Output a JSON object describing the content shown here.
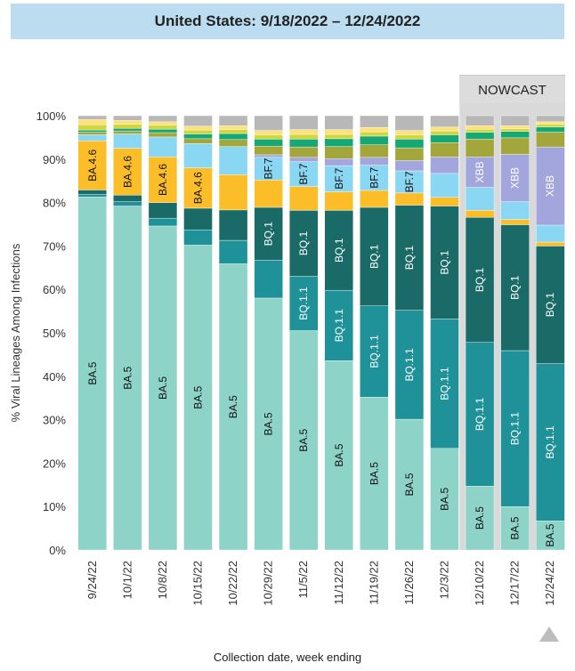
{
  "title": "United States: 9/18/2022 – 12/24/2022",
  "nowcast_label": "NOWCAST",
  "xlabel": "Collection date, week ending",
  "chart_data": {
    "type": "bar",
    "stacked": true,
    "title": "United States: 9/18/2022 – 12/24/2022",
    "xlabel": "Collection date, week ending",
    "ylabel": "% Viral Lineages Among Infections",
    "ylim": [
      0,
      100
    ],
    "yticks": [
      "0%",
      "10%",
      "20%",
      "30%",
      "40%",
      "50%",
      "60%",
      "70%",
      "80%",
      "90%",
      "100%"
    ],
    "grid": false,
    "categories": [
      "9/24/22",
      "10/1/22",
      "10/8/22",
      "10/15/22",
      "10/22/22",
      "10/29/22",
      "11/5/22",
      "11/12/22",
      "11/19/22",
      "11/26/22",
      "12/3/22",
      "12/10/22",
      "12/17/22",
      "12/24/22"
    ],
    "nowcast_categories": [
      "12/10/22",
      "12/17/22",
      "12/24/22"
    ],
    "series": [
      {
        "name": "BA.5",
        "color": "#8dd3c7",
        "values": [
          81.3,
          79.2,
          74.6,
          70.2,
          65.9,
          58.0,
          50.5,
          43.6,
          35.2,
          30.1,
          23.4,
          14.7,
          10.0,
          6.7
        ]
      },
      {
        "name": "BQ.1.1",
        "color": "#1e9199",
        "values": [
          0.6,
          1.0,
          1.8,
          3.5,
          5.4,
          8.7,
          12.5,
          16.2,
          21.0,
          25.1,
          29.8,
          33.1,
          35.9,
          36.2
        ]
      },
      {
        "name": "BQ.1",
        "color": "#1a6b68",
        "values": [
          1.0,
          1.5,
          3.6,
          5.0,
          7.0,
          12.2,
          15.2,
          18.4,
          22.7,
          24.2,
          26.0,
          28.8,
          29.0,
          27.1
        ]
      },
      {
        "name": "",
        "color": "#fbbe28",
        "values": [
          11.3,
          10.8,
          10.5,
          9.3,
          8.1,
          6.3,
          5.5,
          4.3,
          3.9,
          2.8,
          2.0,
          1.6,
          1.2,
          0.9
        ]
      },
      {
        "name": "",
        "color": "#8ad7f4",
        "values": [
          1.4,
          3.3,
          4.6,
          5.6,
          6.5,
          5.2,
          5.7,
          6.0,
          5.8,
          5.1,
          5.5,
          5.3,
          4.1,
          3.9
        ]
      },
      {
        "name": "",
        "color": "#a2a6dc",
        "values": [
          0.0,
          0.0,
          0.0,
          0.0,
          0.0,
          0.6,
          1.0,
          1.6,
          1.8,
          2.4,
          3.8,
          7.0,
          10.9,
          18.0
        ]
      },
      {
        "name": "",
        "color": "#a3a63a",
        "values": [
          0.6,
          0.7,
          1.0,
          1.1,
          1.6,
          2.0,
          2.4,
          2.8,
          2.9,
          2.9,
          3.3,
          4.1,
          3.8,
          3.4
        ]
      },
      {
        "name": "",
        "color": "#16a874",
        "values": [
          0.5,
          0.6,
          0.8,
          1.1,
          1.4,
          1.6,
          1.8,
          1.8,
          2.0,
          2.0,
          1.8,
          1.6,
          1.5,
          1.2
        ]
      },
      {
        "name": "",
        "color": "#d2d63e",
        "values": [
          1.2,
          0.9,
          0.9,
          0.9,
          0.9,
          1.0,
          1.1,
          1.0,
          1.0,
          1.0,
          0.9,
          0.7,
          0.6,
          0.6
        ]
      },
      {
        "name": "",
        "color": "#fde27a",
        "values": [
          1.2,
          0.9,
          0.8,
          0.9,
          0.9,
          1.0,
          1.1,
          1.1,
          1.0,
          1.0,
          0.9,
          0.8,
          0.7,
          0.6
        ]
      },
      {
        "name": "",
        "color": "#b8b8b8",
        "values": [
          0.9,
          1.1,
          1.4,
          2.4,
          2.3,
          3.4,
          3.2,
          3.2,
          2.7,
          3.4,
          2.6,
          2.3,
          2.3,
          1.4
        ]
      }
    ],
    "bar_labels": [
      {
        "series": "BA.5",
        "categories": "all",
        "text": "BA.5"
      },
      {
        "series": "BQ.1.1",
        "categories": [
          "11/5/22",
          "11/12/22",
          "11/19/22",
          "11/26/22",
          "12/3/22",
          "12/10/22",
          "12/17/22",
          "12/24/22"
        ],
        "text": "BQ.1.1"
      },
      {
        "series": "BQ.1",
        "categories": [
          "10/29/22",
          "11/5/22",
          "11/12/22",
          "11/19/22",
          "11/26/22",
          "12/3/22",
          "12/10/22",
          "12/17/22",
          "12/24/22"
        ],
        "text": "BQ.1"
      },
      {
        "series": 3,
        "categories": [
          "9/24/22",
          "10/1/22",
          "10/8/22",
          "10/15/22"
        ],
        "text": "BA.4.6"
      },
      {
        "series": 4,
        "categories": [
          "10/29/22",
          "11/5/22",
          "11/12/22",
          "11/19/22",
          "11/26/22"
        ],
        "text": "BF.7"
      },
      {
        "series": 5,
        "categories": [
          "12/10/22",
          "12/17/22",
          "12/24/22"
        ],
        "text": "XBB"
      }
    ]
  }
}
